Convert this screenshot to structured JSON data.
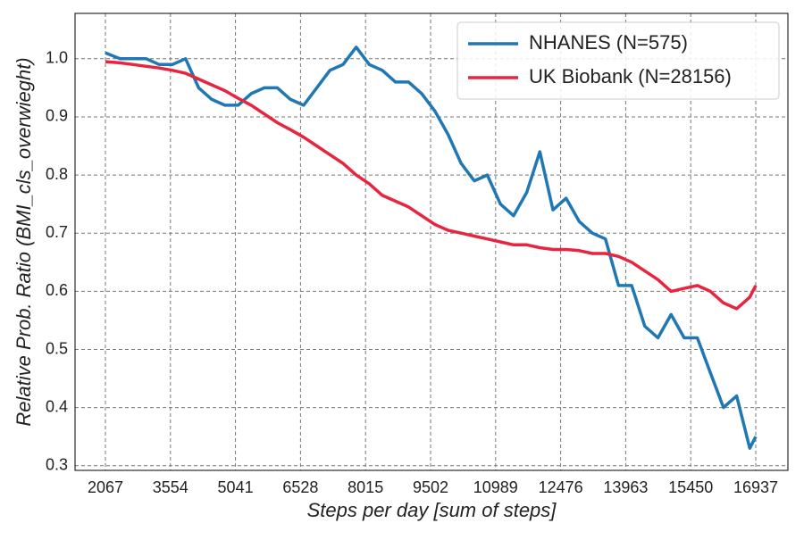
{
  "chart_data": {
    "type": "line",
    "xlabel": "Steps per day [sum of steps]",
    "ylabel": "Relative Prob. Ratio (BMI_cls_overwieght)",
    "x": [
      2067,
      2400,
      2700,
      3000,
      3300,
      3600,
      3900,
      4200,
      4500,
      4800,
      5100,
      5400,
      5700,
      6000,
      6300,
      6600,
      6900,
      7200,
      7500,
      7800,
      8100,
      8400,
      8700,
      9000,
      9300,
      9600,
      9900,
      10200,
      10500,
      10800,
      11100,
      11400,
      11700,
      12000,
      12300,
      12600,
      12900,
      13200,
      13500,
      13800,
      14100,
      14400,
      14700,
      15000,
      15300,
      15600,
      15900,
      16200,
      16500,
      16800,
      16937
    ],
    "series": [
      {
        "name": "NHANES (N=575)",
        "color": "#1f77b4",
        "values": [
          1.01,
          1.0,
          1.0,
          1.0,
          0.99,
          0.99,
          1.0,
          0.95,
          0.93,
          0.92,
          0.92,
          0.94,
          0.95,
          0.95,
          0.93,
          0.92,
          0.95,
          0.98,
          0.99,
          1.02,
          0.99,
          0.98,
          0.96,
          0.96,
          0.94,
          0.91,
          0.87,
          0.82,
          0.79,
          0.8,
          0.75,
          0.73,
          0.77,
          0.84,
          0.74,
          0.76,
          0.72,
          0.7,
          0.69,
          0.61,
          0.61,
          0.54,
          0.52,
          0.56,
          0.52,
          0.52,
          0.46,
          0.4,
          0.42,
          0.33,
          0.35
        ]
      },
      {
        "name": "UK Biobank (N=28156)",
        "color": "#e8253f",
        "values": [
          0.995,
          0.993,
          0.99,
          0.987,
          0.984,
          0.98,
          0.975,
          0.965,
          0.955,
          0.945,
          0.932,
          0.92,
          0.905,
          0.89,
          0.878,
          0.865,
          0.85,
          0.835,
          0.82,
          0.8,
          0.785,
          0.765,
          0.755,
          0.745,
          0.73,
          0.715,
          0.705,
          0.7,
          0.695,
          0.69,
          0.685,
          0.68,
          0.68,
          0.675,
          0.672,
          0.672,
          0.67,
          0.665,
          0.665,
          0.66,
          0.65,
          0.635,
          0.62,
          0.6,
          0.605,
          0.61,
          0.6,
          0.58,
          0.57,
          0.59,
          0.61
        ]
      }
    ],
    "xlim": [
      1373,
      17672
    ],
    "xticks": [
      2067,
      3554,
      5041,
      6528,
      8015,
      9502,
      10989,
      12476,
      13963,
      15450,
      16937
    ],
    "ylim": [
      0.292,
      1.078
    ],
    "yticks": [
      0.3,
      0.4,
      0.5,
      0.6,
      0.7,
      0.8,
      0.9,
      {
        "value": 1,
        "label": "1.0"
      }
    ],
    "grid": true,
    "legend": "upper right"
  }
}
